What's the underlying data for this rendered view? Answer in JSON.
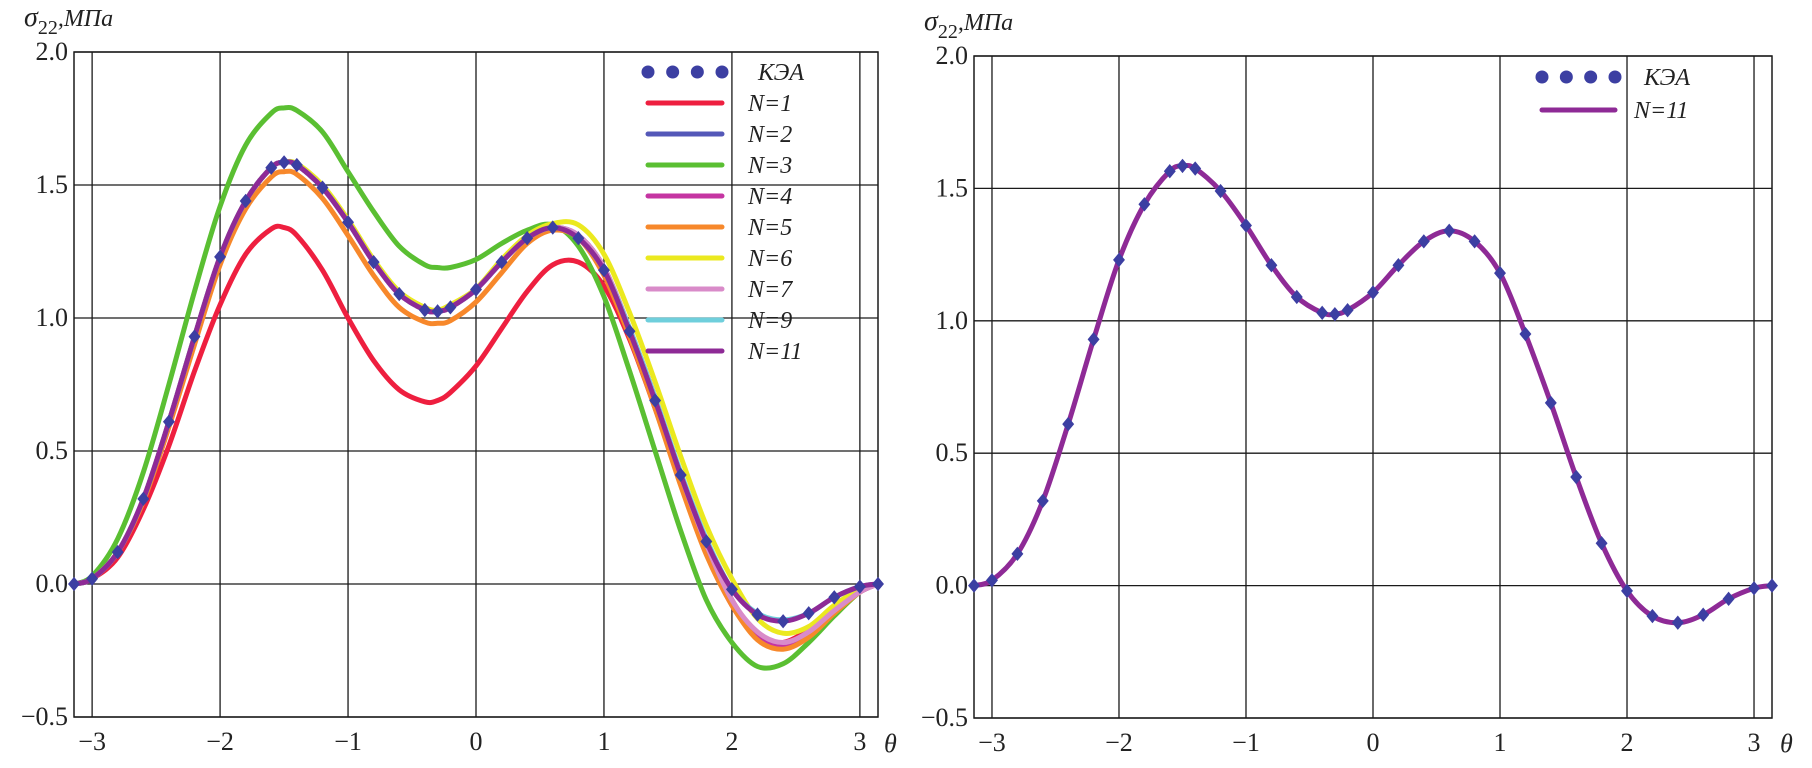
{
  "chart_data": [
    {
      "type": "line",
      "panel": "left",
      "ylabel_symbol": "σ",
      "ylabel_sub": "22",
      "ylabel_unit": ",МПа",
      "xlabel": "θ",
      "xlim": [
        -3.1416,
        3.1416
      ],
      "ylim": [
        -0.5,
        2.0
      ],
      "xticks": [
        -3,
        -2,
        -1,
        0,
        1,
        2,
        3
      ],
      "xtick_labels": [
        "−3",
        "−2",
        "−1",
        "0",
        "1",
        "2",
        "3"
      ],
      "yticks": [
        -0.5,
        0.0,
        0.5,
        1.0,
        1.5,
        2.0
      ],
      "ytick_labels": [
        "−0.5",
        "0.0",
        "0.5",
        "1.0",
        "1.5",
        "2.0"
      ],
      "grid": true,
      "legend_position": "top-right",
      "x": [
        -3.1416,
        -3,
        -2.8,
        -2.6,
        -2.4,
        -2.2,
        -2.0,
        -1.8,
        -1.6,
        -1.5,
        -1.4,
        -1.2,
        -1.0,
        -0.8,
        -0.6,
        -0.4,
        -0.3,
        -0.2,
        0,
        0.2,
        0.4,
        0.6,
        0.8,
        1.0,
        1.2,
        1.4,
        1.6,
        1.8,
        2.0,
        2.2,
        2.4,
        2.6,
        2.8,
        3.0,
        3.1416
      ],
      "markers": {
        "name": "КЭА",
        "color": "#3c3fa2",
        "values": [
          0,
          0.02,
          0.12,
          0.32,
          0.61,
          0.93,
          1.23,
          1.44,
          1.565,
          1.585,
          1.575,
          1.49,
          1.36,
          1.21,
          1.09,
          1.03,
          1.025,
          1.04,
          1.107,
          1.21,
          1.3,
          1.34,
          1.3,
          1.18,
          0.95,
          0.69,
          0.41,
          0.16,
          -0.02,
          -0.115,
          -0.14,
          -0.11,
          -0.05,
          -0.01,
          0
        ]
      },
      "series": [
        {
          "name": "N=1",
          "color": "#ee1f3f",
          "values": [
            0,
            0.02,
            0.1,
            0.28,
            0.52,
            0.8,
            1.05,
            1.24,
            1.335,
            1.34,
            1.31,
            1.18,
            1.0,
            0.84,
            0.73,
            0.685,
            0.69,
            0.72,
            0.82,
            0.96,
            1.1,
            1.2,
            1.21,
            1.12,
            0.92,
            0.66,
            0.38,
            0.12,
            -0.08,
            -0.2,
            -0.22,
            -0.17,
            -0.09,
            -0.02,
            0
          ]
        },
        {
          "name": "N=2",
          "color": "#5458b8",
          "values": [
            0,
            0.02,
            0.12,
            0.32,
            0.61,
            0.93,
            1.23,
            1.44,
            1.565,
            1.585,
            1.575,
            1.49,
            1.36,
            1.21,
            1.09,
            1.03,
            1.025,
            1.04,
            1.107,
            1.21,
            1.3,
            1.34,
            1.31,
            1.19,
            0.96,
            0.7,
            0.41,
            0.15,
            -0.06,
            -0.19,
            -0.23,
            -0.19,
            -0.1,
            -0.03,
            0
          ]
        },
        {
          "name": "N=3",
          "color": "#5abf32",
          "values": [
            0,
            0.03,
            0.17,
            0.42,
            0.75,
            1.1,
            1.42,
            1.65,
            1.77,
            1.79,
            1.78,
            1.7,
            1.55,
            1.4,
            1.27,
            1.2,
            1.19,
            1.19,
            1.22,
            1.28,
            1.33,
            1.35,
            1.27,
            1.08,
            0.8,
            0.5,
            0.2,
            -0.06,
            -0.22,
            -0.31,
            -0.3,
            -0.22,
            -0.12,
            -0.03,
            0
          ]
        },
        {
          "name": "N=4",
          "color": "#c535a2",
          "values": [
            0,
            0.02,
            0.12,
            0.32,
            0.61,
            0.93,
            1.23,
            1.44,
            1.565,
            1.585,
            1.575,
            1.49,
            1.36,
            1.21,
            1.09,
            1.03,
            1.025,
            1.04,
            1.107,
            1.21,
            1.3,
            1.34,
            1.31,
            1.19,
            0.96,
            0.7,
            0.41,
            0.15,
            -0.06,
            -0.19,
            -0.235,
            -0.19,
            -0.1,
            -0.03,
            0
          ]
        },
        {
          "name": "N=5",
          "color": "#f7882b",
          "values": [
            0,
            0.02,
            0.12,
            0.31,
            0.59,
            0.9,
            1.2,
            1.41,
            1.53,
            1.55,
            1.54,
            1.45,
            1.31,
            1.16,
            1.04,
            0.985,
            0.98,
            0.99,
            1.06,
            1.17,
            1.28,
            1.33,
            1.3,
            1.16,
            0.93,
            0.66,
            0.37,
            0.11,
            -0.08,
            -0.21,
            -0.245,
            -0.2,
            -0.11,
            -0.03,
            0
          ]
        },
        {
          "name": "N=6",
          "color": "#ebe91f",
          "values": [
            0,
            0.02,
            0.12,
            0.32,
            0.61,
            0.93,
            1.23,
            1.44,
            1.565,
            1.585,
            1.58,
            1.5,
            1.37,
            1.22,
            1.1,
            1.04,
            1.03,
            1.05,
            1.11,
            1.22,
            1.31,
            1.355,
            1.35,
            1.24,
            1.02,
            0.76,
            0.48,
            0.22,
            0.02,
            -0.13,
            -0.185,
            -0.16,
            -0.08,
            -0.02,
            0
          ]
        },
        {
          "name": "N=7",
          "color": "#d98bc9",
          "values": [
            0,
            0.02,
            0.12,
            0.32,
            0.61,
            0.93,
            1.23,
            1.44,
            1.565,
            1.585,
            1.575,
            1.49,
            1.36,
            1.21,
            1.09,
            1.03,
            1.025,
            1.04,
            1.107,
            1.21,
            1.3,
            1.34,
            1.31,
            1.19,
            0.96,
            0.7,
            0.41,
            0.15,
            -0.06,
            -0.18,
            -0.22,
            -0.18,
            -0.1,
            -0.03,
            0
          ]
        },
        {
          "name": "N=9",
          "color": "#6fcfdc",
          "values": [
            0,
            0.02,
            0.12,
            0.32,
            0.61,
            0.93,
            1.23,
            1.44,
            1.565,
            1.585,
            1.575,
            1.49,
            1.36,
            1.21,
            1.09,
            1.03,
            1.025,
            1.04,
            1.107,
            1.21,
            1.3,
            1.34,
            1.3,
            1.18,
            0.96,
            0.7,
            0.42,
            0.17,
            -0.02,
            -0.11,
            -0.135,
            -0.11,
            -0.05,
            -0.01,
            0
          ]
        },
        {
          "name": "N=11",
          "color": "#8e2a96",
          "values": [
            0,
            0.02,
            0.12,
            0.32,
            0.61,
            0.93,
            1.23,
            1.44,
            1.565,
            1.585,
            1.575,
            1.49,
            1.36,
            1.21,
            1.09,
            1.03,
            1.025,
            1.04,
            1.107,
            1.21,
            1.3,
            1.34,
            1.3,
            1.18,
            0.95,
            0.69,
            0.41,
            0.16,
            -0.02,
            -0.115,
            -0.14,
            -0.11,
            -0.05,
            -0.01,
            0
          ]
        }
      ]
    },
    {
      "type": "line",
      "panel": "right",
      "ylabel_symbol": "σ",
      "ylabel_sub": "22",
      "ylabel_unit": ",МПа",
      "xlabel": "θ",
      "xlim": [
        -3.1416,
        3.1416
      ],
      "ylim": [
        -0.5,
        2.0
      ],
      "xticks": [
        -3,
        -2,
        -1,
        0,
        1,
        2,
        3
      ],
      "xtick_labels": [
        "−3",
        "−2",
        "−1",
        "0",
        "1",
        "2",
        "3"
      ],
      "yticks": [
        -0.5,
        0.0,
        0.5,
        1.0,
        1.5,
        2.0
      ],
      "ytick_labels": [
        "−0.5",
        "0.0",
        "0.5",
        "1.0",
        "1.5",
        "2.0"
      ],
      "grid": true,
      "legend_position": "top-right",
      "x": [
        -3.1416,
        -3,
        -2.8,
        -2.6,
        -2.4,
        -2.2,
        -2.0,
        -1.8,
        -1.6,
        -1.5,
        -1.4,
        -1.2,
        -1.0,
        -0.8,
        -0.6,
        -0.4,
        -0.3,
        -0.2,
        0,
        0.2,
        0.4,
        0.6,
        0.8,
        1.0,
        1.2,
        1.4,
        1.6,
        1.8,
        2.0,
        2.2,
        2.4,
        2.6,
        2.8,
        3.0,
        3.1416
      ],
      "markers": {
        "name": "КЭА",
        "color": "#3c3fa2",
        "values": [
          0,
          0.02,
          0.12,
          0.32,
          0.61,
          0.93,
          1.23,
          1.44,
          1.565,
          1.585,
          1.575,
          1.49,
          1.36,
          1.21,
          1.09,
          1.03,
          1.025,
          1.04,
          1.107,
          1.21,
          1.3,
          1.34,
          1.3,
          1.18,
          0.95,
          0.69,
          0.41,
          0.16,
          -0.02,
          -0.115,
          -0.14,
          -0.11,
          -0.05,
          -0.01,
          0
        ]
      },
      "series": [
        {
          "name": "N=11",
          "color": "#8e2a96",
          "values": [
            0,
            0.02,
            0.12,
            0.32,
            0.61,
            0.93,
            1.23,
            1.44,
            1.565,
            1.585,
            1.575,
            1.49,
            1.36,
            1.21,
            1.09,
            1.03,
            1.025,
            1.04,
            1.107,
            1.21,
            1.3,
            1.34,
            1.3,
            1.18,
            0.95,
            0.69,
            0.41,
            0.16,
            -0.02,
            -0.115,
            -0.14,
            -0.11,
            -0.05,
            -0.01,
            0
          ]
        }
      ]
    }
  ]
}
